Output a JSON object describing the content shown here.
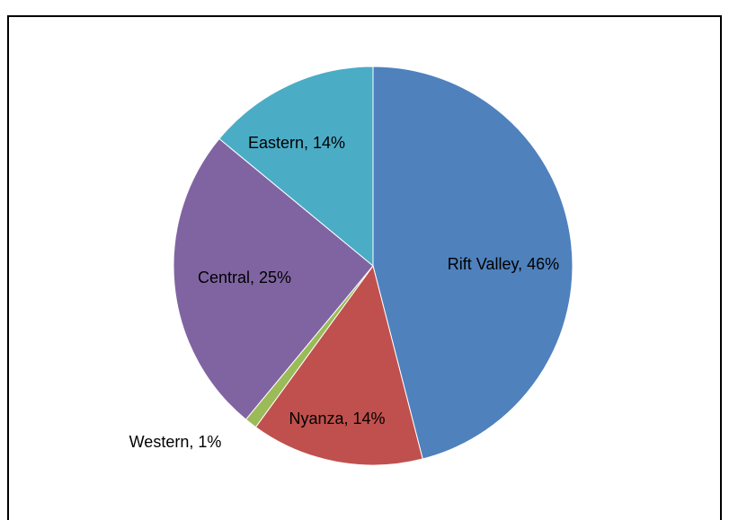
{
  "chart_data": {
    "type": "pie",
    "categories": [
      "Rift Valley",
      "Nyanza",
      "Western",
      "Central",
      "Eastern"
    ],
    "values": [
      46,
      14,
      1,
      25,
      14
    ],
    "value_labels": [
      "Rift Valley, 46%",
      "Nyanza, 14%",
      "Western, 1%",
      "Central, 25%",
      "Eastern, 14%"
    ],
    "colors": [
      "#4f81bd",
      "#c0504d",
      "#9bbb59",
      "#8064a2",
      "#4bacc6"
    ]
  }
}
